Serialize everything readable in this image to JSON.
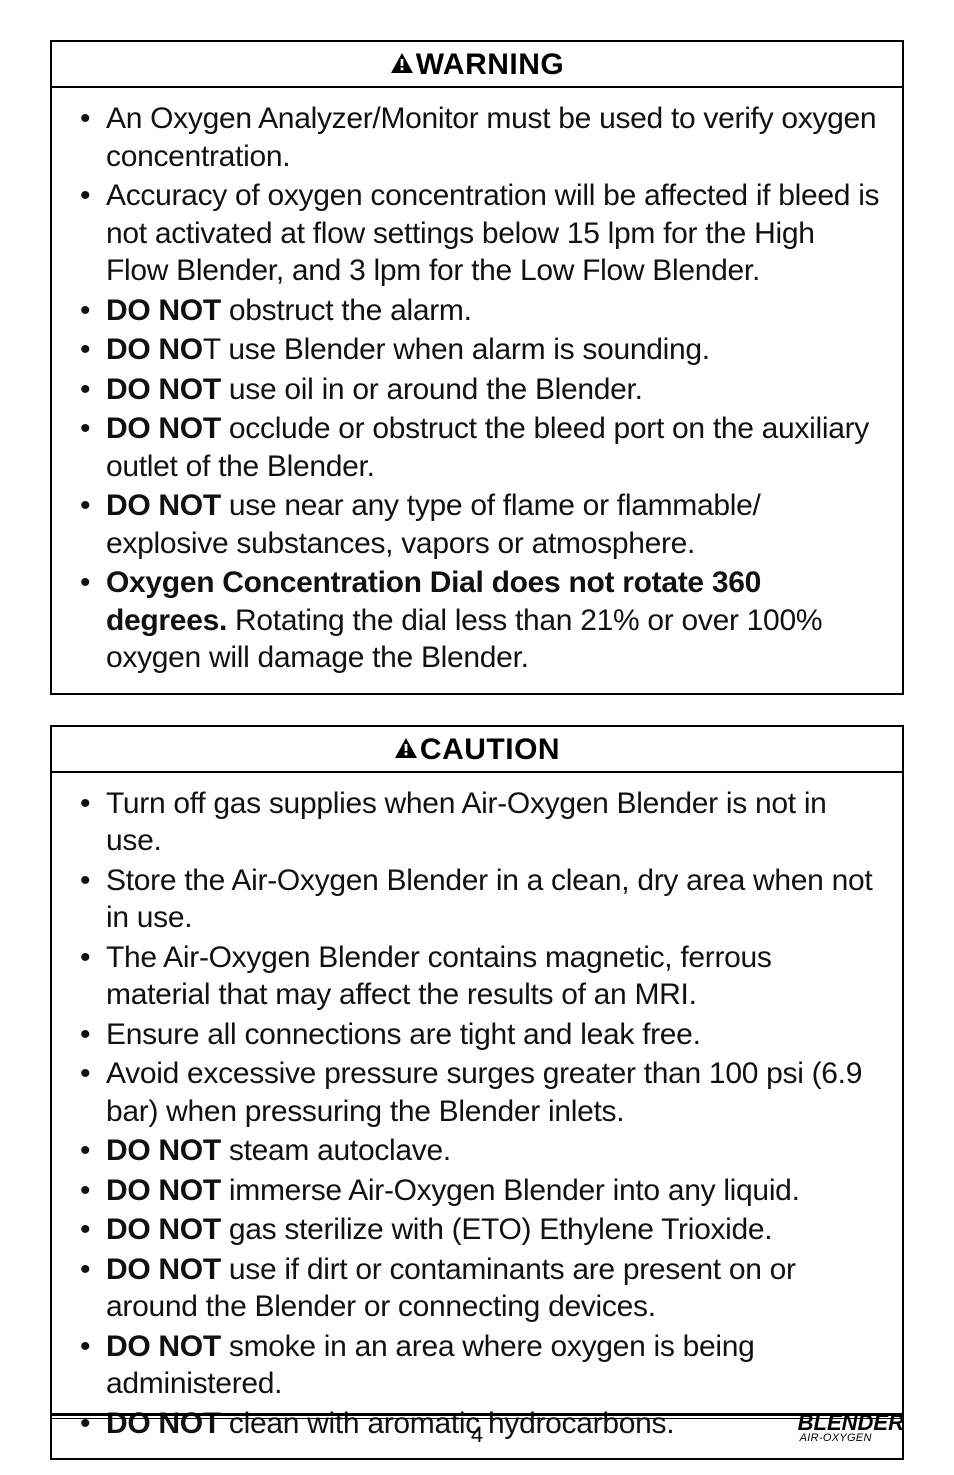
{
  "warning": {
    "heading": "WARNING",
    "items": [
      {
        "html": "An Oxygen Analyzer/Monitor must be used to verify oxygen concentration."
      },
      {
        "html": "Accuracy of oxygen concentration will be affected if bleed is not activated at flow settings below 15 lpm for the High Flow Blender, and 3 lpm for the Low Flow Blender."
      },
      {
        "html": "<span class=\"b\">DO NOT</span> obstruct the alarm."
      },
      {
        "html": "<span class=\"b\">DO NO</span>T use Blender when alarm is sounding."
      },
      {
        "html": "<span class=\"b\">DO NOT</span> use oil in or around the Blender."
      },
      {
        "html": "<span class=\"b\">DO NOT</span> occlude or obstruct the bleed port on the auxiliary outlet of the Blender."
      },
      {
        "html": "<span class=\"b\">DO NOT</span> use near any type of flame or flammable/ explosive substances, vapors or atmosphere."
      },
      {
        "html": "<span class=\"b\">Oxygen Concentration Dial does not rotate 360 degrees.</span> Rotating the dial less than 21% or over 100% oxygen will damage the Blender."
      }
    ]
  },
  "caution": {
    "heading": "CAUTION",
    "items": [
      {
        "html": "Turn off gas supplies when Air-Oxygen Blender is not in use."
      },
      {
        "html": "Store the Air-Oxygen Blender in a clean, dry area when not in use."
      },
      {
        "html": "The Air-Oxygen Blender contains magnetic, ferrous material that may affect the results of an MRI."
      },
      {
        "html": "Ensure all connections are tight and leak free."
      },
      {
        "html": "Avoid excessive pressure surges greater than 100 psi (6.9 bar) when pressuring the Blender inlets."
      },
      {
        "html": "<span class=\"b\">DO NOT</span> steam autoclave."
      },
      {
        "html": "<span class=\"b\">DO NOT</span> immerse Air-Oxygen Blender into any liquid."
      },
      {
        "html": "<span class=\"b\">DO NOT</span> gas sterilize with (ETO) Ethylene Trioxide."
      },
      {
        "html": "<span class=\"b\">DO NOT</span> use if dirt or contaminants are present on or around the Blender or connecting devices."
      },
      {
        "html": "<span class=\"b\">DO NOT</span> smoke in an area where oxygen is being administered."
      },
      {
        "html": "<span class=\"b\">DO NOT</span> clean with aromatic hydrocarbons."
      }
    ]
  },
  "footer": {
    "page": "4",
    "brand_top": "BLENDER",
    "brand_sub": "AIR-OXYGEN"
  }
}
